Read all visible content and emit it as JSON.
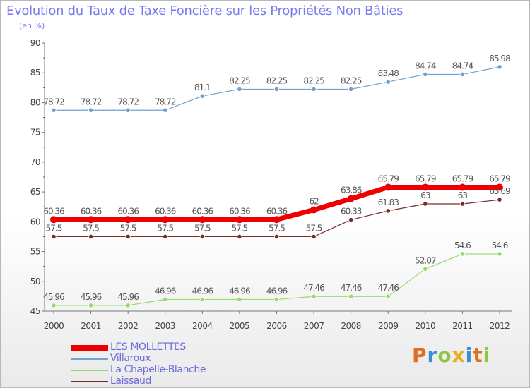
{
  "header": {
    "title": "Evolution du Taux de Taxe Foncière sur les Propriétés Non Bâties",
    "units": "(en %)"
  },
  "logo": {
    "text": "Proxiti"
  },
  "chart_data": {
    "type": "line",
    "ylim": [
      45,
      90
    ],
    "yticks": [
      45,
      50,
      55,
      60,
      65,
      70,
      75,
      80,
      85,
      90
    ],
    "grid": false,
    "legend_position": "bottom-left",
    "categories": [
      "2000",
      "2001",
      "2002",
      "2003",
      "2004",
      "2005",
      "2006",
      "2007",
      "2008",
      "2009",
      "2010",
      "2011",
      "2012"
    ],
    "series": [
      {
        "name": "LES MOLLETTES",
        "color": "#ee0000",
        "width": 7,
        "values": [
          60.36,
          60.36,
          60.36,
          60.36,
          60.36,
          60.36,
          60.36,
          62,
          63.86,
          65.79,
          65.79,
          65.79,
          65.79
        ],
        "labels": [
          "60.36",
          "60.36",
          "60.36",
          "60.36",
          "60.36",
          "60.36",
          "60.36",
          "62",
          "63.86",
          "65.79",
          "65.79",
          "65.79",
          "65.79"
        ]
      },
      {
        "name": "Villaroux",
        "color": "#6ea0d0",
        "width": 1.2,
        "values": [
          78.72,
          78.72,
          78.72,
          78.72,
          81.1,
          82.25,
          82.25,
          82.25,
          82.25,
          83.48,
          84.74,
          84.74,
          85.98
        ],
        "labels": [
          "78.72",
          "78.72",
          "78.72",
          "78.72",
          "81.1",
          "82.25",
          "82.25",
          "82.25",
          "82.25",
          "83.48",
          "84.74",
          "84.74",
          "85.98"
        ]
      },
      {
        "name": "La Chapelle-Blanche",
        "color": "#98d870",
        "width": 1.2,
        "values": [
          45.96,
          45.96,
          45.96,
          46.96,
          46.96,
          46.96,
          46.96,
          47.46,
          47.46,
          47.46,
          52.07,
          54.6,
          54.6
        ],
        "labels": [
          "45.96",
          "45.96",
          "45.96",
          "46.96",
          "46.96",
          "46.96",
          "46.96",
          "47.46",
          "47.46",
          "47.46",
          "52.07",
          "54.6",
          "54.6"
        ]
      },
      {
        "name": "Laissaud",
        "color": "#7a2a2a",
        "width": 1.2,
        "values": [
          57.5,
          57.5,
          57.5,
          57.5,
          57.5,
          57.5,
          57.5,
          57.5,
          60.33,
          61.83,
          63,
          63,
          63.69
        ],
        "labels": [
          "57.5",
          "57.5",
          "57.5",
          "57.5",
          "57.5",
          "57.5",
          "57.5",
          "57.5",
          "60.33",
          "61.83",
          "63",
          "63",
          "63.69"
        ]
      }
    ]
  }
}
